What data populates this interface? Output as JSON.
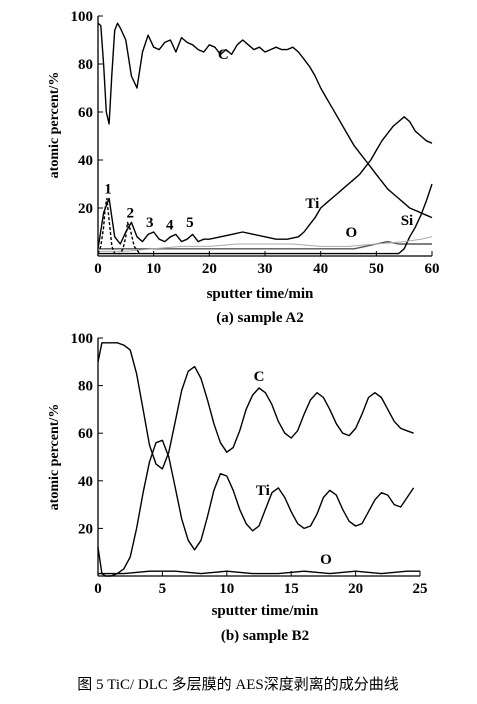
{
  "chart_data": [
    {
      "type": "line",
      "panel_label": "(a) sample A2",
      "xlabel": "sputter time/min",
      "ylabel": "atomic percent/%",
      "xlim": [
        0,
        60
      ],
      "ylim": [
        0,
        100
      ],
      "xticks": [
        0,
        10,
        20,
        30,
        40,
        50,
        60
      ],
      "yticks": [
        20,
        40,
        60,
        80,
        100
      ],
      "grid": false,
      "series": [
        {
          "name": "C",
          "color": "#000000",
          "x": [
            0,
            0.5,
            1,
            1.5,
            2,
            2.5,
            3,
            3.5,
            4,
            5,
            6,
            7,
            8,
            9,
            10,
            11,
            12,
            13,
            14,
            15,
            16,
            17,
            18,
            19,
            20,
            21,
            22,
            23,
            24,
            25,
            26,
            27,
            28,
            29,
            30,
            31,
            32,
            33,
            34,
            35,
            36,
            37,
            38,
            39,
            40,
            41,
            42,
            43,
            44,
            45,
            46,
            47,
            48,
            49,
            50,
            51,
            52,
            53,
            54,
            55,
            56,
            57,
            58,
            59,
            60
          ],
          "y": [
            97,
            96,
            80,
            60,
            55,
            76,
            94,
            97,
            95,
            90,
            75,
            70,
            85,
            92,
            87,
            86,
            89,
            90,
            85,
            91,
            89,
            88,
            86,
            85,
            88,
            87,
            84,
            86,
            84,
            88,
            90,
            88,
            86,
            87,
            85,
            86,
            87,
            86,
            86,
            87,
            85,
            82,
            79,
            75,
            70,
            66,
            62,
            58,
            54,
            50,
            46,
            43,
            40,
            37,
            34,
            31,
            28,
            26,
            24,
            22,
            20,
            19,
            18,
            17,
            16
          ]
        },
        {
          "name": "Ti",
          "color": "#000000",
          "x": [
            0,
            1,
            2,
            3,
            4,
            5,
            6,
            7,
            8,
            9,
            10,
            11,
            12,
            13,
            14,
            15,
            16,
            17,
            18,
            19,
            20,
            22,
            24,
            26,
            28,
            30,
            32,
            34,
            36,
            37,
            38,
            39,
            40,
            41,
            42,
            43,
            44,
            45,
            46,
            47,
            48,
            49,
            50,
            51,
            52,
            53,
            54,
            55,
            56,
            57,
            58,
            59,
            60
          ],
          "y": [
            3,
            18,
            24,
            8,
            5,
            10,
            14,
            8,
            6,
            9,
            10,
            7,
            6,
            8,
            9,
            6,
            7,
            9,
            6,
            7,
            7,
            8,
            9,
            10,
            9,
            8,
            7,
            7,
            8,
            10,
            13,
            16,
            20,
            22,
            24,
            26,
            28,
            30,
            32,
            34,
            37,
            40,
            44,
            48,
            51,
            54,
            56,
            58,
            56,
            52,
            50,
            48,
            47
          ]
        },
        {
          "name": "O",
          "color": "#555555",
          "x": [
            0,
            5,
            10,
            15,
            20,
            25,
            30,
            35,
            38,
            40,
            42,
            44,
            46,
            48,
            50,
            52,
            54,
            56,
            58,
            60
          ],
          "y": [
            3,
            3,
            3,
            3,
            3,
            3,
            3,
            3,
            3,
            3,
            3,
            3,
            3,
            4,
            5,
            6,
            5,
            5,
            5,
            5
          ]
        },
        {
          "name": "Si",
          "color": "#000000",
          "x": [
            0,
            10,
            20,
            30,
            40,
            50,
            52,
            54,
            55,
            56,
            57,
            58,
            59,
            60
          ],
          "y": [
            1,
            1,
            1,
            1,
            1,
            1,
            1,
            1,
            3,
            8,
            12,
            17,
            23,
            30
          ]
        },
        {
          "name": "",
          "color": "#aaaaaa",
          "x": [
            0,
            5,
            10,
            15,
            20,
            25,
            30,
            35,
            40,
            45,
            50,
            55,
            58,
            60
          ],
          "y": [
            2,
            2,
            3,
            4,
            4,
            5,
            5,
            5,
            4,
            4,
            5,
            6,
            7,
            8
          ]
        },
        {
          "name": "",
          "color": "#000000",
          "dashed": true,
          "x": [
            0,
            0.5,
            1,
            1.3,
            1.6,
            2,
            2.5,
            3,
            4,
            4.5,
            5,
            5.3,
            5.8,
            6.5,
            7.5
          ],
          "y": [
            1,
            4,
            12,
            20,
            24,
            15,
            4,
            1,
            1,
            3,
            8,
            14,
            11,
            4,
            1
          ]
        }
      ],
      "annotations": [
        {
          "text": "C",
          "x": 22.5,
          "y": 82
        },
        {
          "text": "Ti",
          "x": 38.5,
          "y": 20
        },
        {
          "text": "O",
          "x": 45.5,
          "y": 8
        },
        {
          "text": "Si",
          "x": 55.5,
          "y": 13
        },
        {
          "text": "1",
          "x": 1.8,
          "y": 26
        },
        {
          "text": "2",
          "x": 5.8,
          "y": 16
        },
        {
          "text": "3",
          "x": 9.3,
          "y": 12
        },
        {
          "text": "4",
          "x": 12.9,
          "y": 11
        },
        {
          "text": "5",
          "x": 16.5,
          "y": 12
        }
      ]
    },
    {
      "type": "line",
      "panel_label": "(b) sample B2",
      "xlabel": "sputter time/min",
      "ylabel": "atomic percent/%",
      "xlim": [
        0,
        25
      ],
      "ylim": [
        0,
        100
      ],
      "xticks": [
        0,
        5,
        10,
        15,
        20,
        25
      ],
      "yticks": [
        20,
        40,
        60,
        80,
        100
      ],
      "grid": false,
      "series": [
        {
          "name": "C",
          "color": "#000000",
          "x": [
            0,
            0.3,
            0.6,
            1,
            1.5,
            2,
            2.5,
            3,
            3.5,
            4,
            4.5,
            5,
            5.5,
            6,
            6.5,
            7,
            7.5,
            8,
            8.5,
            9,
            9.5,
            10,
            10.5,
            11,
            11.5,
            12,
            12.5,
            13,
            13.5,
            14,
            14.5,
            15,
            15.5,
            16,
            16.5,
            17,
            17.5,
            18,
            18.5,
            19,
            19.5,
            20,
            20.5,
            21,
            21.5,
            22,
            22.5,
            23,
            23.5,
            24,
            24.5
          ],
          "y": [
            90,
            98,
            98,
            98,
            98,
            97,
            95,
            85,
            70,
            55,
            47,
            45,
            52,
            65,
            78,
            86,
            88,
            83,
            74,
            64,
            56,
            52,
            54,
            61,
            70,
            76,
            79,
            77,
            72,
            65,
            60,
            58,
            61,
            68,
            74,
            77,
            75,
            70,
            64,
            60,
            59,
            62,
            68,
            75,
            77,
            75,
            70,
            65,
            62,
            61,
            60
          ]
        },
        {
          "name": "Ti",
          "color": "#000000",
          "x": [
            0,
            0.3,
            0.6,
            1,
            1.5,
            2,
            2.5,
            3,
            3.5,
            4,
            4.5,
            5,
            5.5,
            6,
            6.5,
            7,
            7.5,
            8,
            8.5,
            9,
            9.5,
            10,
            10.5,
            11,
            11.5,
            12,
            12.5,
            13,
            13.5,
            14,
            14.5,
            15,
            15.5,
            16,
            16.5,
            17,
            17.5,
            18,
            18.5,
            19,
            19.5,
            20,
            20.5,
            21,
            21.5,
            22,
            22.5,
            23,
            23.5,
            24,
            24.5
          ],
          "y": [
            12,
            1,
            0,
            0,
            1,
            3,
            8,
            20,
            35,
            48,
            56,
            57,
            50,
            37,
            24,
            15,
            11,
            15,
            25,
            36,
            43,
            42,
            36,
            28,
            22,
            19,
            21,
            28,
            35,
            37,
            33,
            27,
            22,
            20,
            21,
            26,
            33,
            36,
            34,
            28,
            23,
            21,
            22,
            27,
            32,
            35,
            34,
            30,
            29,
            33,
            37
          ]
        },
        {
          "name": "O",
          "color": "#000000",
          "x": [
            0,
            2,
            4,
            6,
            8,
            10,
            12,
            14,
            16,
            18,
            20,
            22,
            24,
            25
          ],
          "y": [
            1,
            1,
            2,
            2,
            1,
            2,
            1,
            1,
            2,
            1,
            2,
            1,
            2,
            2
          ]
        }
      ],
      "annotations": [
        {
          "text": "C",
          "x": 12.5,
          "y": 82
        },
        {
          "text": "Ti",
          "x": 12.8,
          "y": 34
        },
        {
          "text": "O",
          "x": 17.7,
          "y": 5
        }
      ]
    }
  ],
  "caption": "图 5  TiC/ DLC 多层膜的 AES深度剥离的成分曲线"
}
